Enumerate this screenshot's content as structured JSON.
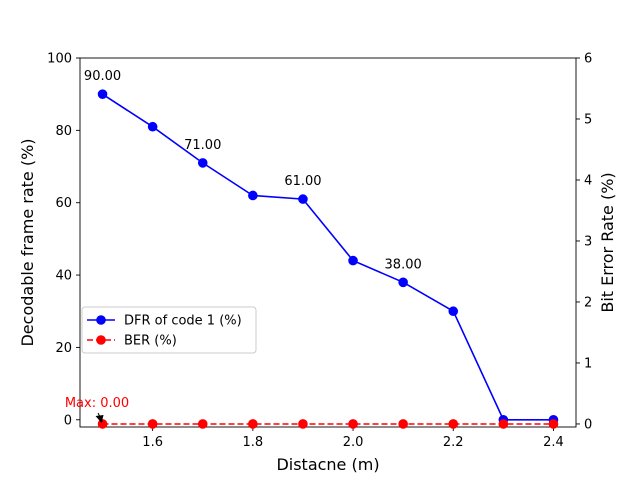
{
  "chart_data": {
    "type": "line",
    "xlabel": "Distacne (m)",
    "ylabel_left": "Decodable frame rate (%)",
    "ylabel_right": "Bit Error Rate (%)",
    "x": [
      1.5,
      1.6,
      1.7,
      1.8,
      1.9,
      2.0,
      2.1,
      2.2,
      2.3,
      2.4
    ],
    "xlim": [
      1.455,
      2.445
    ],
    "ylim_left": [
      -2,
      100
    ],
    "ylim_right": [
      -0.05,
      6
    ],
    "xticks": [
      1.6,
      1.8,
      2.0,
      2.2,
      2.4
    ],
    "xtick_labels": [
      "1.6",
      "1.8",
      "2.0",
      "2.2",
      "2.4"
    ],
    "yticks_left": [
      0,
      20,
      40,
      60,
      80,
      100
    ],
    "ytick_labels_left": [
      "0",
      "20",
      "40",
      "60",
      "80",
      "100"
    ],
    "yticks_right": [
      0,
      1,
      2,
      3,
      4,
      5,
      6
    ],
    "ytick_labels_right": [
      "0",
      "1",
      "2",
      "3",
      "4",
      "5",
      "6"
    ],
    "series": [
      {
        "name": "DFR of code 1 (%)",
        "axis": "left",
        "color": "#0000ff",
        "line_style": "solid",
        "marker": "circle",
        "values": [
          90,
          81,
          71,
          62,
          61,
          44,
          38,
          30,
          0,
          0
        ]
      },
      {
        "name": "BER (%)",
        "axis": "right",
        "color": "#ff0000",
        "line_style": "dashed",
        "marker": "circle",
        "values": [
          0,
          0,
          0,
          0,
          0,
          0,
          0,
          0,
          0,
          0
        ]
      }
    ],
    "data_labels": [
      {
        "x": 1.5,
        "y": 90,
        "text": "90.00"
      },
      {
        "x": 1.7,
        "y": 71,
        "text": "71.00"
      },
      {
        "x": 1.9,
        "y": 61,
        "text": "61.00"
      },
      {
        "x": 2.1,
        "y": 38,
        "text": "38.00"
      }
    ],
    "annotation": {
      "x": 1.5,
      "y": 0,
      "axis": "right",
      "text": "Max: 0.00",
      "color": "#ff0000"
    },
    "legend": {
      "location": "center-left"
    },
    "grid": false
  }
}
